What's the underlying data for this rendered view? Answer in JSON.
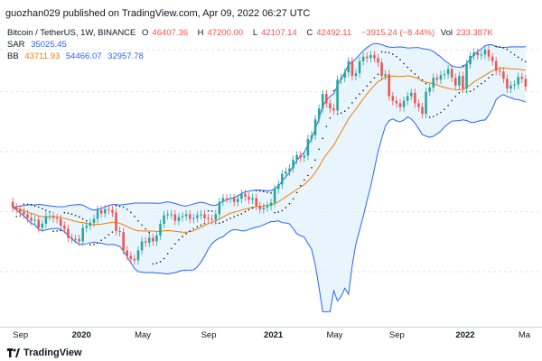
{
  "header": {
    "text": "guozhan029 published on TradingView.com, Apr 09, 2022 06:27 UTC"
  },
  "legend": {
    "symbol": "Bitcoin / TetherUS, 1W, BINANCE",
    "open_label": "O",
    "open": "46407.36",
    "high_label": "H",
    "high": "47200.00",
    "low_label": "L",
    "low": "42107.14",
    "close_label": "C",
    "close": "42492.11",
    "change": "−3915.24 (−8.44%)",
    "vol_label": "Vol",
    "vol": "233.387K",
    "sar_label": "SAR",
    "sar": "35025.45",
    "bb_label": "BB",
    "bb_basis": "43711.93",
    "bb_upper": "54466.07",
    "bb_lower": "32957.78"
  },
  "footer": {
    "brand": "TradingView"
  },
  "colors": {
    "up": "#26a69a",
    "down": "#ef5350",
    "bb_basis": "#f57c00",
    "bb_bands": "#2962ff",
    "bb_fill": "#e3f2fd",
    "sar": "#131722",
    "grid": "#e0e3eb"
  },
  "chart_data": {
    "type": "candlestick",
    "x_ticks": [
      {
        "label": "Sep",
        "bold": false,
        "t": 2
      },
      {
        "label": "2020",
        "bold": true,
        "t": 18
      },
      {
        "label": "May",
        "bold": false,
        "t": 35
      },
      {
        "label": "Sep",
        "bold": false,
        "t": 53
      },
      {
        "label": "2021",
        "bold": true,
        "t": 70
      },
      {
        "label": "May",
        "bold": false,
        "t": 87
      },
      {
        "label": "Sep",
        "bold": false,
        "t": 104
      },
      {
        "label": "2022",
        "bold": true,
        "t": 122
      },
      {
        "label": "Ma",
        "bold": false,
        "t": 139
      }
    ],
    "close": [
      10500,
      10300,
      10000,
      9700,
      9300,
      9000,
      9100,
      8300,
      8700,
      9500,
      9500,
      9300,
      9200,
      8500,
      8200,
      7400,
      7300,
      7300,
      7100,
      8300,
      8500,
      8800,
      9200,
      10200,
      9800,
      10300,
      10200,
      9900,
      8000,
      7900,
      6400,
      6000,
      5800,
      5700,
      6400,
      7100,
      7000,
      7400,
      7100,
      7600,
      8700,
      9600,
      9700,
      9700,
      9000,
      9400,
      9500,
      9700,
      9200,
      9300,
      9600,
      9700,
      9300,
      9200,
      9100,
      9700,
      11200,
      11700,
      11600,
      11700,
      11200,
      11600,
      12300,
      11900,
      11500,
      11700,
      10700,
      10300,
      10500,
      10700,
      11100,
      13000,
      13700,
      15500,
      15900,
      16500,
      18200,
      19200,
      18700,
      19100,
      23200,
      24200,
      29100,
      33000,
      39000,
      35000,
      33000,
      32200,
      46000,
      47000,
      50000,
      57000,
      48000,
      49500,
      57000,
      60000,
      59000,
      61000,
      59000,
      56000,
      48000,
      49000,
      38000,
      36000,
      35000,
      33500,
      36000,
      38000,
      39500,
      35000,
      33500,
      31000,
      40000,
      42000,
      47000,
      46000,
      48500,
      49000,
      52000,
      47000,
      43000,
      48000,
      41500,
      55000,
      60500,
      63000,
      61000,
      61500,
      65000,
      60000,
      57000,
      51000,
      50500,
      46500,
      41500,
      43000,
      43500,
      47500,
      46500,
      42492
    ],
    "open": [
      11200,
      10500,
      10300,
      10000,
      9700,
      9300,
      9000,
      9100,
      8300,
      8700,
      9500,
      9500,
      9300,
      9200,
      8500,
      8200,
      7400,
      7300,
      7300,
      7100,
      8300,
      8500,
      8800,
      9200,
      10200,
      9800,
      10300,
      10200,
      9900,
      8000,
      7900,
      6400,
      6000,
      5800,
      5700,
      6400,
      7100,
      7000,
      7400,
      7100,
      7600,
      8700,
      9600,
      9700,
      9700,
      9000,
      9400,
      9500,
      9700,
      9200,
      9300,
      9600,
      9700,
      9300,
      9200,
      9100,
      9700,
      11200,
      11700,
      11600,
      11700,
      11200,
      11600,
      12300,
      11900,
      11500,
      11700,
      10700,
      10300,
      10500,
      10700,
      11100,
      13000,
      13700,
      15500,
      15900,
      16500,
      18200,
      19200,
      18700,
      19100,
      23200,
      24200,
      29100,
      33000,
      39000,
      35000,
      33000,
      32200,
      46000,
      47000,
      50000,
      57000,
      48000,
      49500,
      57000,
      60000,
      59000,
      61000,
      59000,
      56000,
      48000,
      49000,
      38000,
      36000,
      35000,
      33500,
      36000,
      38000,
      39500,
      35000,
      33500,
      31000,
      40000,
      42000,
      47000,
      46000,
      48500,
      49000,
      52000,
      47000,
      43000,
      48000,
      41500,
      55000,
      60500,
      63000,
      61000,
      61500,
      65000,
      60000,
      57000,
      51000,
      50500,
      46500,
      41500,
      43000,
      43500,
      47500,
      46407
    ],
    "y_range": [
      3000,
      70000
    ],
    "note_periods": "weekly candles, Aug 2019 to Apr 2022"
  }
}
